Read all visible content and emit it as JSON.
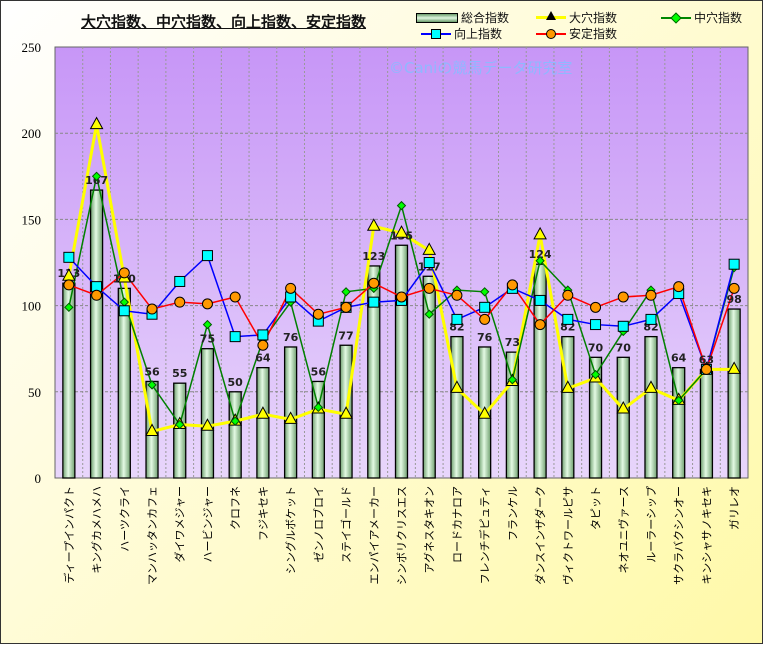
{
  "chart_data": {
    "type": "bar+line",
    "title": "大穴指数、中穴指数、向上指数、安定指数",
    "watermark": "©Caniの競馬データ研究室",
    "ylim": [
      0,
      250
    ],
    "yticks": [
      0,
      50,
      100,
      150,
      200,
      250
    ],
    "grid": true,
    "legend_position": "top-right",
    "categories": [
      "ディープインパクト",
      "キングカメハメハ",
      "ハーツクライ",
      "マンハッタンカフェ",
      "ダイワメジャー",
      "ハービンジャー",
      "クロフネ",
      "フジキセキ",
      "シングルボケット",
      "ゼンノロブロイ",
      "ステイゴールド",
      "エンパイアメーカー",
      "シンボリクリスエス",
      "アグネスタキオン",
      "ロードカナロア",
      "フレンチデピュティ",
      "フランケル",
      "ダンスインザダーク",
      "ヴィクトワールピサ",
      "タピット",
      "ネオユニヴァース",
      "ルーラーシップ",
      "サクラバクシンオー",
      "キンシャサノキセキ",
      "ガリレオ"
    ],
    "series": [
      {
        "name": "総合指数",
        "kind": "bar",
        "color": "#c8f0c8",
        "values": [
          113,
          167,
          110,
          56,
          55,
          75,
          50,
          64,
          76,
          56,
          77,
          123,
          135,
          117,
          82,
          76,
          73,
          124,
          82,
          70,
          70,
          82,
          64,
          63,
          98
        ]
      },
      {
        "name": "大穴指数",
        "kind": "line",
        "color": "#ffff00",
        "marker": "triangle",
        "values": [
          117,
          205,
          116,
          27,
          31,
          30,
          33,
          37,
          34,
          40,
          37,
          146,
          142,
          132,
          52,
          37,
          56,
          141,
          52,
          58,
          40,
          52,
          45,
          63,
          63
        ]
      },
      {
        "name": "中穴指数",
        "kind": "line",
        "color": "#008000",
        "marker": "diamond",
        "values": [
          99,
          175,
          102,
          54,
          31,
          89,
          33,
          80,
          102,
          41,
          108,
          110,
          158,
          95,
          109,
          108,
          57,
          126,
          109,
          60,
          85,
          109,
          45,
          63,
          122
        ]
      },
      {
        "name": "向上指数",
        "kind": "line",
        "color": "#0000ff",
        "marker": "square",
        "values": [
          128,
          111,
          97,
          95,
          114,
          129,
          82,
          83,
          105,
          91,
          99,
          102,
          103,
          125,
          92,
          99,
          110,
          103,
          92,
          89,
          88,
          92,
          107,
          63,
          124
        ]
      },
      {
        "name": "安定指数",
        "kind": "line",
        "color": "#ff0000",
        "marker": "circle",
        "values": [
          112,
          106,
          119,
          98,
          102,
          101,
          105,
          77,
          110,
          95,
          99,
          113,
          105,
          110,
          106,
          92,
          112,
          89,
          106,
          99,
          105,
          106,
          111,
          63,
          110
        ]
      }
    ]
  }
}
